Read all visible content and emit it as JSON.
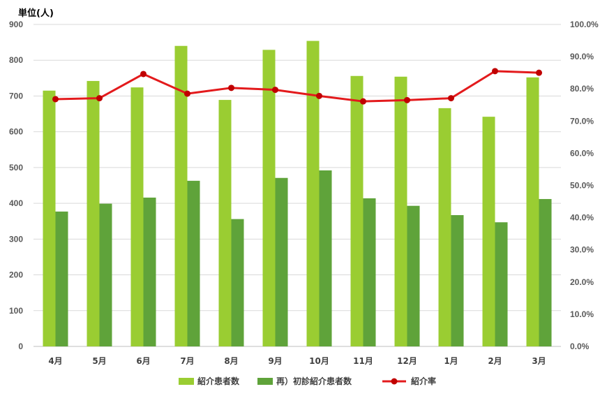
{
  "unit_label": "単位(人)",
  "colors": {
    "referral_bar": "#9ACD32",
    "first_visit_bar": "#5FA33A",
    "rate_line": "#E31A1C",
    "rate_marker": "#C00000",
    "grid": "#D9D9D9",
    "axis": "#BFBFBF"
  },
  "chart_data": {
    "type": "bar",
    "categories": [
      "4月",
      "5月",
      "6月",
      "7月",
      "8月",
      "9月",
      "10月",
      "11月",
      "12月",
      "1月",
      "2月",
      "3月"
    ],
    "series": [
      {
        "name": "紹介患者数",
        "type": "bar",
        "axis": "left",
        "values": [
          715,
          742,
          724,
          840,
          689,
          829,
          854,
          756,
          754,
          666,
          642,
          752
        ]
      },
      {
        "name": "再）初診紹介患者数",
        "type": "bar",
        "axis": "left",
        "values": [
          377,
          399,
          416,
          463,
          356,
          471,
          492,
          414,
          393,
          367,
          347,
          412
        ]
      },
      {
        "name": "紹介率",
        "type": "line",
        "axis": "right",
        "values": [
          0.768,
          0.771,
          0.846,
          0.785,
          0.803,
          0.797,
          0.778,
          0.761,
          0.765,
          0.771,
          0.855,
          0.85
        ]
      }
    ],
    "y_left": {
      "min": 0,
      "max": 900,
      "ticks": [
        "0",
        "100",
        "200",
        "300",
        "400",
        "500",
        "600",
        "700",
        "800",
        "900"
      ]
    },
    "y_right": {
      "min": 0,
      "max": 1,
      "ticks": [
        "0.0%",
        "10.0%",
        "20.0%",
        "30.0%",
        "40.0%",
        "50.0%",
        "60.0%",
        "70.0%",
        "80.0%",
        "90.0%",
        "100.0%"
      ]
    },
    "grid": true,
    "legend_position": "bottom"
  }
}
